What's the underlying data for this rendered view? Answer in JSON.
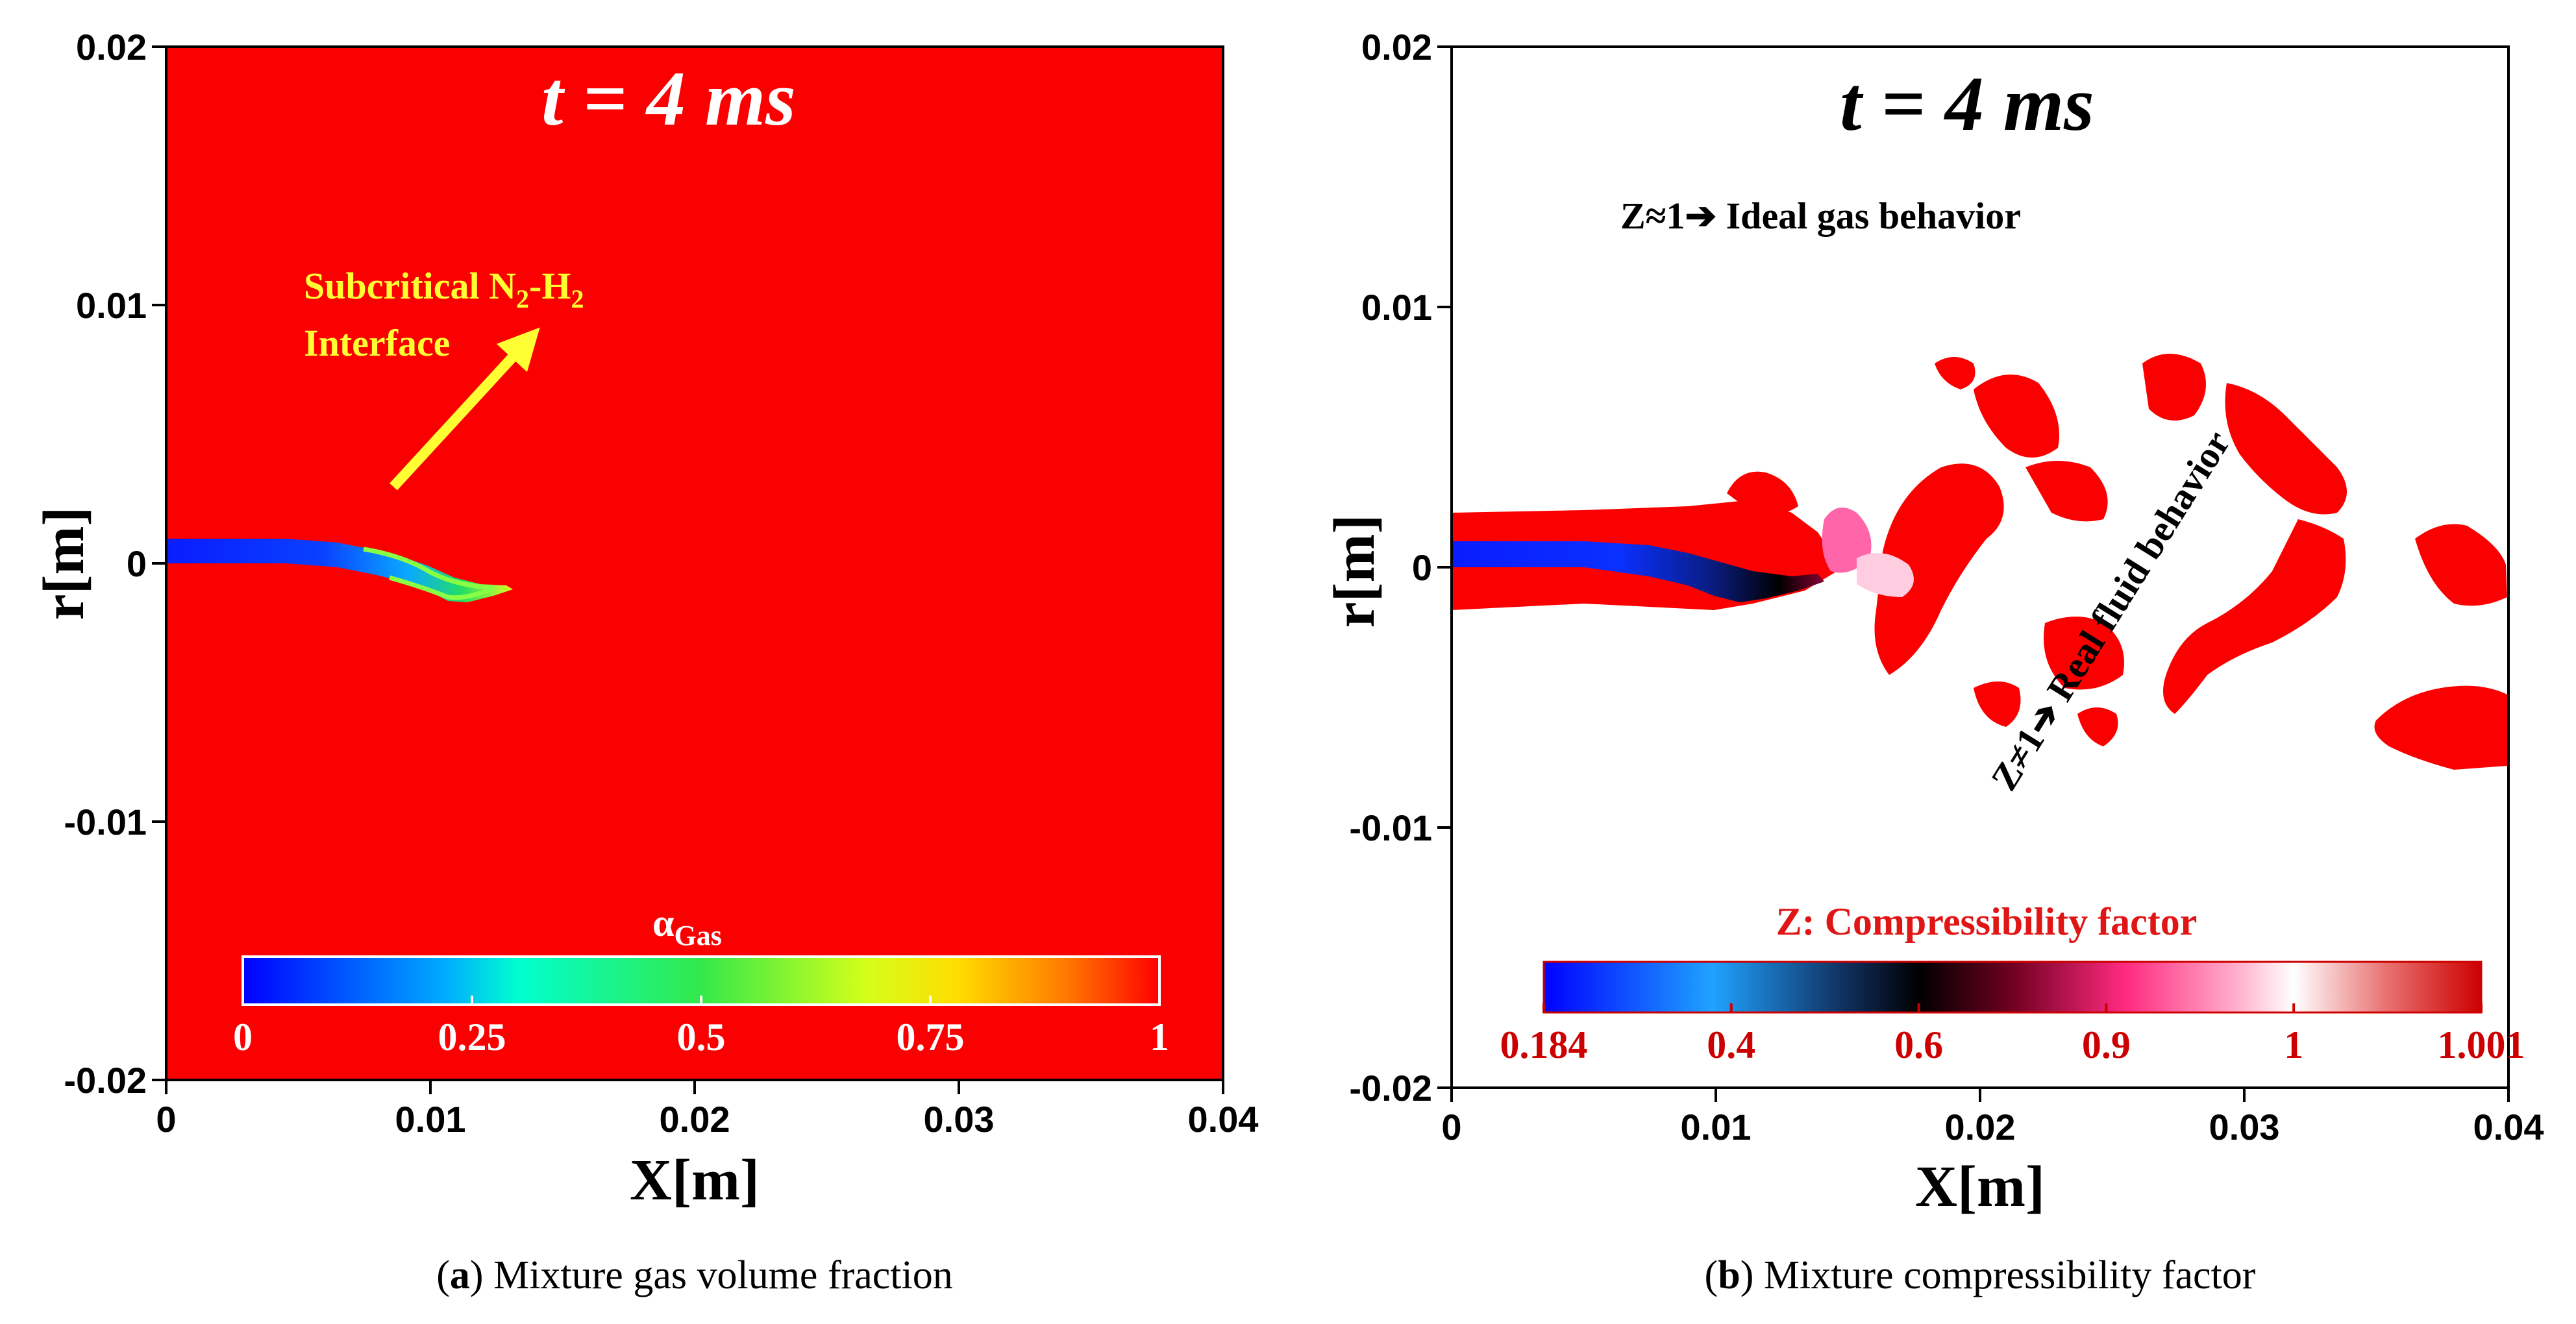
{
  "time_label": "t = 4 ms",
  "axes": {
    "xlabel": "X[m]",
    "ylabel": "r[m]",
    "xlim": [
      0,
      0.04
    ],
    "ylim": [
      -0.02,
      0.02
    ],
    "xticks": [
      "0",
      "0.01",
      "0.02",
      "0.03",
      "0.04"
    ],
    "yticks": [
      "0.02",
      "0.01",
      "0",
      "-0.01",
      "-0.02"
    ]
  },
  "panel_a": {
    "caption_letter": "a",
    "caption_text": " Mixture gas volume fraction",
    "annotation": {
      "line1": "Subcritical N",
      "sub1": "2",
      "mid": "-H",
      "sub2": "2",
      "line2": "Interface"
    },
    "colorbar": {
      "title": "α",
      "title_sub": "Gas",
      "ticks": [
        "0",
        "0.25",
        "0.5",
        "0.75",
        "1"
      ]
    }
  },
  "panel_b": {
    "caption_letter": "b",
    "caption_text": " Mixture compressibility factor",
    "annotation_ideal": "Z≈1➔ Ideal gas behavior",
    "annotation_real": "Z≠1➔ Real fluid behavior",
    "colorbar": {
      "title": "Z: Compressibility factor",
      "ticks": [
        "0.184",
        "0.4",
        "0.6",
        "0.9",
        "1",
        "1.001"
      ]
    }
  },
  "colors": {
    "field_red": "#fb0000",
    "jet_blue": "#0a1cff",
    "annotation_yellow": "#ffff33",
    "z_title_red": "#e01616",
    "time_white": "#ffffff"
  }
}
